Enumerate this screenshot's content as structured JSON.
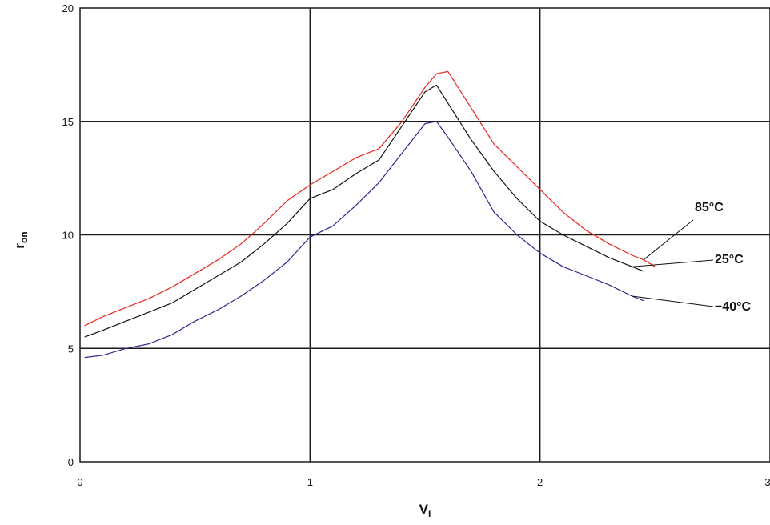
{
  "chart_data": {
    "type": "line",
    "xlabel": {
      "main": "V",
      "sub": "I"
    },
    "ylabel": {
      "main": "r",
      "sub": "on"
    },
    "xlim": [
      0,
      3
    ],
    "ylim": [
      0,
      20
    ],
    "x_ticks": [
      "0",
      "1",
      "2",
      "3"
    ],
    "y_ticks": [
      "0",
      "5",
      "10",
      "15",
      "20"
    ],
    "grid": true,
    "series": [
      {
        "name": "85°C",
        "color": "#e8261f",
        "x": [
          0.02,
          0.1,
          0.2,
          0.3,
          0.4,
          0.5,
          0.6,
          0.7,
          0.8,
          0.9,
          1.0,
          1.1,
          1.2,
          1.3,
          1.4,
          1.5,
          1.55,
          1.6,
          1.7,
          1.8,
          1.9,
          2.0,
          2.1,
          2.2,
          2.3,
          2.4,
          2.45,
          2.5
        ],
        "y": [
          6.0,
          6.4,
          6.8,
          7.2,
          7.7,
          8.3,
          8.9,
          9.6,
          10.5,
          11.5,
          12.2,
          12.8,
          13.4,
          13.8,
          15.0,
          16.5,
          17.1,
          17.2,
          15.6,
          14.0,
          13.0,
          12.0,
          11.0,
          10.2,
          9.6,
          9.1,
          8.9,
          8.6
        ]
      },
      {
        "name": "25°C",
        "color": "#111111",
        "x": [
          0.02,
          0.1,
          0.2,
          0.3,
          0.4,
          0.5,
          0.6,
          0.7,
          0.8,
          0.9,
          1.0,
          1.1,
          1.2,
          1.3,
          1.4,
          1.5,
          1.55,
          1.6,
          1.7,
          1.8,
          1.9,
          2.0,
          2.1,
          2.2,
          2.3,
          2.4,
          2.45
        ],
        "y": [
          5.5,
          5.8,
          6.2,
          6.6,
          7.0,
          7.6,
          8.2,
          8.8,
          9.6,
          10.5,
          11.6,
          12.0,
          12.7,
          13.3,
          14.8,
          16.3,
          16.6,
          15.8,
          14.2,
          12.8,
          11.6,
          10.6,
          10.0,
          9.5,
          9.0,
          8.6,
          8.4
        ]
      },
      {
        "name": "−40°C",
        "color": "#2a2a8c",
        "x": [
          0.02,
          0.1,
          0.2,
          0.3,
          0.4,
          0.5,
          0.6,
          0.7,
          0.8,
          0.9,
          1.0,
          1.1,
          1.2,
          1.3,
          1.4,
          1.5,
          1.55,
          1.6,
          1.7,
          1.8,
          1.9,
          2.0,
          2.1,
          2.2,
          2.3,
          2.4,
          2.45
        ],
        "y": [
          4.6,
          4.7,
          5.0,
          5.2,
          5.6,
          6.2,
          6.7,
          7.3,
          8.0,
          8.8,
          9.9,
          10.4,
          11.3,
          12.3,
          13.6,
          14.9,
          15.0,
          14.3,
          12.8,
          11.0,
          10.0,
          9.2,
          8.6,
          8.2,
          7.8,
          7.3,
          7.1
        ]
      }
    ],
    "annotations": [
      {
        "text": "85°C",
        "series": 0
      },
      {
        "text": "25°C",
        "series": 1
      },
      {
        "text": "−40°C",
        "series": 2
      }
    ]
  }
}
